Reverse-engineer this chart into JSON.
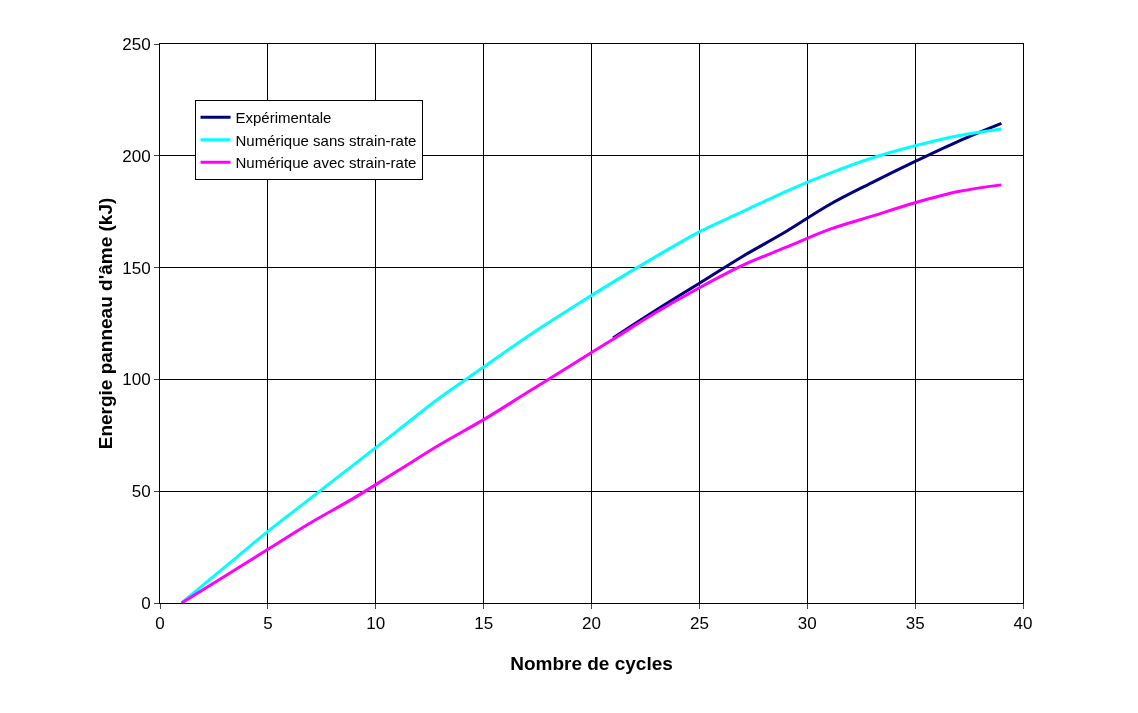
{
  "chart_data": {
    "type": "line",
    "xlabel": "Nombre de cycles",
    "ylabel": "Energie panneau d'âme (kJ)",
    "x": [
      1,
      3,
      5,
      7,
      9,
      11,
      13,
      15,
      17,
      19,
      21,
      23,
      25,
      27,
      29,
      31,
      33,
      35,
      37,
      39
    ],
    "series": [
      {
        "name": "Expérimentale",
        "color": "#000080",
        "values": [
          null,
          null,
          null,
          null,
          null,
          null,
          null,
          null,
          null,
          null,
          118.5,
          131,
          143,
          155,
          166,
          178,
          188,
          197.5,
          206.5,
          214.5
        ]
      },
      {
        "name": "Numérique sans strain-rate",
        "color": "#00ffff",
        "values": [
          0,
          16,
          32,
          47,
          62,
          77,
          92,
          105.5,
          119,
          131.5,
          143.5,
          155,
          166,
          175,
          184,
          192,
          199,
          204.5,
          209,
          212
        ]
      },
      {
        "name": "Numérique avec strain-rate",
        "color": "#ff00ff",
        "values": [
          0,
          12,
          24,
          36,
          47,
          59,
          71,
          82,
          94,
          106,
          118,
          130,
          141,
          151,
          159,
          167,
          173,
          179,
          184,
          187
        ]
      }
    ],
    "xlim": [
      0,
      40
    ],
    "xticks": [
      0,
      5,
      10,
      15,
      20,
      25,
      30,
      35,
      40
    ],
    "ylim": [
      0,
      250
    ],
    "yticks": [
      0,
      50,
      100,
      150,
      200,
      250
    ],
    "grid": true,
    "legend": "top left",
    "marker": "none",
    "line_style": "solid"
  }
}
